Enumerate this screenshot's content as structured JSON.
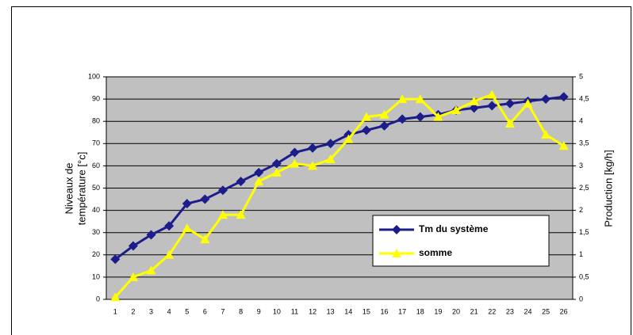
{
  "chart_data": {
    "type": "line",
    "y_label": [
      "Niveaux de",
      "température [°c]"
    ],
    "y2_label": "Production [kg/h]",
    "categories": [
      "1",
      "2",
      "3",
      "4",
      "5",
      "6",
      "7",
      "8",
      "9",
      "10",
      "11",
      "12",
      "13",
      "14",
      "15",
      "16",
      "17",
      "18",
      "19",
      "20",
      "21",
      "22",
      "23",
      "24",
      "25",
      "26"
    ],
    "series": [
      {
        "name": "Tm du système",
        "color": "#1c1c8a",
        "marker": "diamond",
        "values": [
          18,
          24,
          29,
          33,
          43,
          45,
          49,
          53,
          57,
          61,
          66,
          68,
          70,
          74,
          76,
          78,
          81,
          82,
          83,
          85,
          86,
          87,
          88,
          89,
          90,
          91
        ]
      },
      {
        "name": "somme",
        "color": "#ffff00",
        "marker": "triangle",
        "axis": "y2",
        "values": [
          0.05,
          0.5,
          0.65,
          1.0,
          1.6,
          1.35,
          1.9,
          1.9,
          2.65,
          2.85,
          3.05,
          3.0,
          3.15,
          3.6,
          4.1,
          4.15,
          4.5,
          4.5,
          4.1,
          4.25,
          4.45,
          4.6,
          3.95,
          4.4,
          3.7,
          3.45
        ]
      }
    ],
    "ylim": [
      0,
      100
    ],
    "yticks": [
      0,
      10,
      20,
      30,
      40,
      50,
      60,
      70,
      80,
      90,
      100
    ],
    "y2lim": [
      0,
      5
    ],
    "y2ticks": [
      0,
      {
        "value": 0.5,
        "label": "0,5"
      },
      1,
      {
        "value": 1.5,
        "label": "1,5"
      },
      2,
      {
        "value": 2.5,
        "label": "2,5"
      },
      3,
      {
        "value": 3.5,
        "label": "3,5"
      },
      4,
      {
        "value": 4.5,
        "label": "4,5"
      },
      5
    ],
    "grid": true,
    "plot_background": "#c0c0c0"
  }
}
